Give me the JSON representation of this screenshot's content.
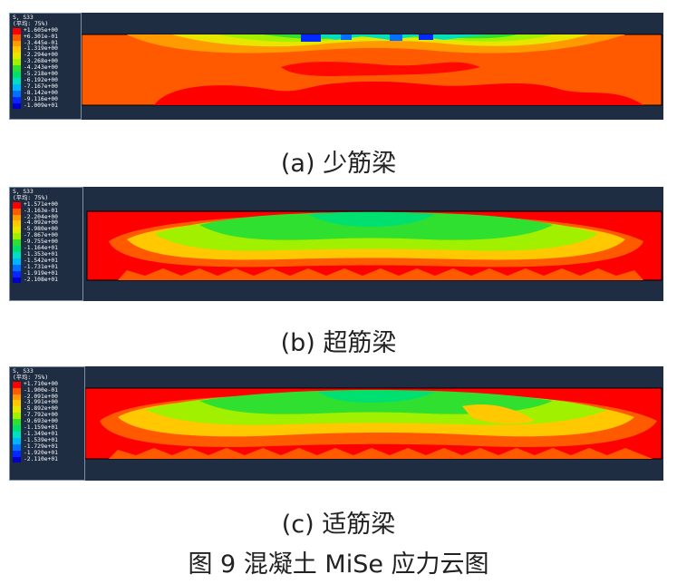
{
  "colors": {
    "background_dark": "#1f2d42",
    "scale": [
      "#ff0000",
      "#ff5a00",
      "#ff9a00",
      "#ffc800",
      "#e6e600",
      "#a0f000",
      "#30e030",
      "#00e070",
      "#00e0c0",
      "#00b4ff",
      "#0070ff",
      "#0028ff",
      "#0000c8"
    ]
  },
  "panels": [
    {
      "id": "a",
      "caption": "(a) 少筋梁",
      "legend": {
        "title_line1": "S, S33",
        "title_line2": "(平均: 75%)",
        "values": [
          "+1.605e+00",
          "+6.301e-01",
          "-3.445e-01",
          "-1.319e+00",
          "-2.294e+00",
          "-3.268e+00",
          "-4.243e+00",
          "-5.218e+00",
          "-6.192e+00",
          "-7.167e+00",
          "-8.142e+00",
          "-9.116e+00",
          "-1.009e+01"
        ]
      }
    },
    {
      "id": "b",
      "caption": "(b) 超筋梁",
      "legend": {
        "title_line1": "S, S33",
        "title_line2": "(平均: 75%)",
        "values": [
          "+1.571e+00",
          "-3.163e-01",
          "-2.204e+00",
          "-4.092e+00",
          "-5.980e+00",
          "-7.867e+00",
          "-9.755e+00",
          "-1.164e+01",
          "-1.353e+01",
          "-1.542e+01",
          "-1.731e+01",
          "-1.919e+01",
          "-2.108e+01"
        ]
      }
    },
    {
      "id": "c",
      "caption": "(c) 适筋梁",
      "legend": {
        "title_line1": "S, S33",
        "title_line2": "(平均: 75%)",
        "values": [
          "+1.710e+00",
          "-1.900e-01",
          "-2.091e+00",
          "-3.991e+00",
          "-5.892e+00",
          "-7.792e+00",
          "-9.693e+00",
          "-1.159e+01",
          "-1.349e+01",
          "-1.539e+01",
          "-1.729e+01",
          "-1.920e+01",
          "-2.110e+01"
        ]
      }
    }
  ],
  "figure_title": "图 9   混凝土 MiSe 应力云图"
}
